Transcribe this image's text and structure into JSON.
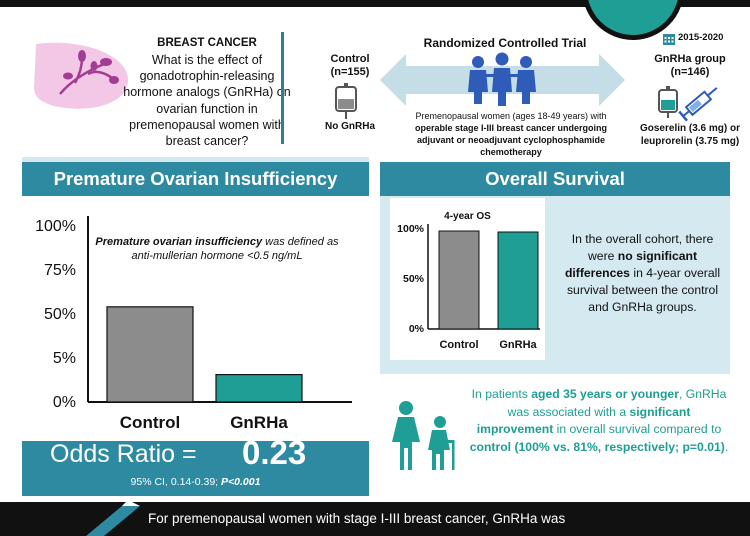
{
  "header": {
    "question_title": "BREAST CANCER",
    "question": "What is the effect of gonadotrophin-releasing hormone analogs (GnRHa) on ovarian function in premenopausal women with breast cancer?",
    "trial_title": "Randomized Controlled Trial",
    "control_label": "Control",
    "control_n": "(n=155)",
    "control_treatment": "No GnRHa",
    "trial_population_normal": "Premenopausal women (ages 18-49 years) with",
    "trial_population_bold": "operable stage I-III breast cancer undergoing adjuvant or neoadjuvant cyclophosphamide chemotherapy",
    "year_range": "2015-2020",
    "gnrha_label": "GnRHa group",
    "gnrha_n": "(n=146)",
    "gnrha_drugs_line1": "Goserelin (3.6 mg) or",
    "gnrha_drugs_line2": "leuprorelin (3.75 mg)"
  },
  "poi_panel": {
    "title": "Premature Ovarian Insufficiency",
    "definition_pre": "Premature ovarian insufficiency",
    "definition_post": " was defined as anti-mullerian hormone <0.5 ng/mL",
    "odds_label": "Odds Ratio =",
    "odds_value": "0.23",
    "ci_text": "95% CI, 0.14-0.39; ",
    "p_text": "P<0.001"
  },
  "os_panel": {
    "title": "Overall Survival",
    "text_1": "In the overall cohort, there were ",
    "text_bold": "no significant differences",
    "text_2": " in 4-year overall survival between the control and GnRHa groups."
  },
  "young_panel": {
    "t1": "In patients ",
    "b1": "aged 35 years or younger",
    "t2": ", GnRHa was associated with a ",
    "b2": "significant improvement",
    "t3": " in overall survival compared to ",
    "b3": "control",
    "b4": "(100% vs. 81%, respectively; p=0.01)",
    "t4": "."
  },
  "bottom_text": "For premenopausal women with stage I-III breast cancer, GnRHa was",
  "colors": {
    "teal": "#1e9e94",
    "blue_header": "#2d8aa0",
    "panel_bg": "#d5e9f1",
    "control_bar": "#8c8c8c",
    "gnrha_bar": "#1e9e94"
  },
  "chart_data": [
    {
      "type": "bar",
      "categories": [
        "Control",
        "GnRHa"
      ],
      "values": [
        53.5,
        3
      ],
      "yticks": [
        "100%",
        "75%",
        "50%",
        "5%",
        "0%"
      ],
      "tick_values": [
        100,
        75,
        50,
        5,
        0
      ],
      "title": "",
      "xlabel": "",
      "ylabel": ""
    },
    {
      "type": "bar",
      "categories": [
        "Control",
        "GnRHa"
      ],
      "values": [
        97,
        96
      ],
      "yticks": [
        "100%",
        "50%",
        "0%"
      ],
      "tick_values": [
        100,
        50,
        0
      ],
      "ylim": [
        0,
        100
      ],
      "title": "4-year OS"
    }
  ]
}
